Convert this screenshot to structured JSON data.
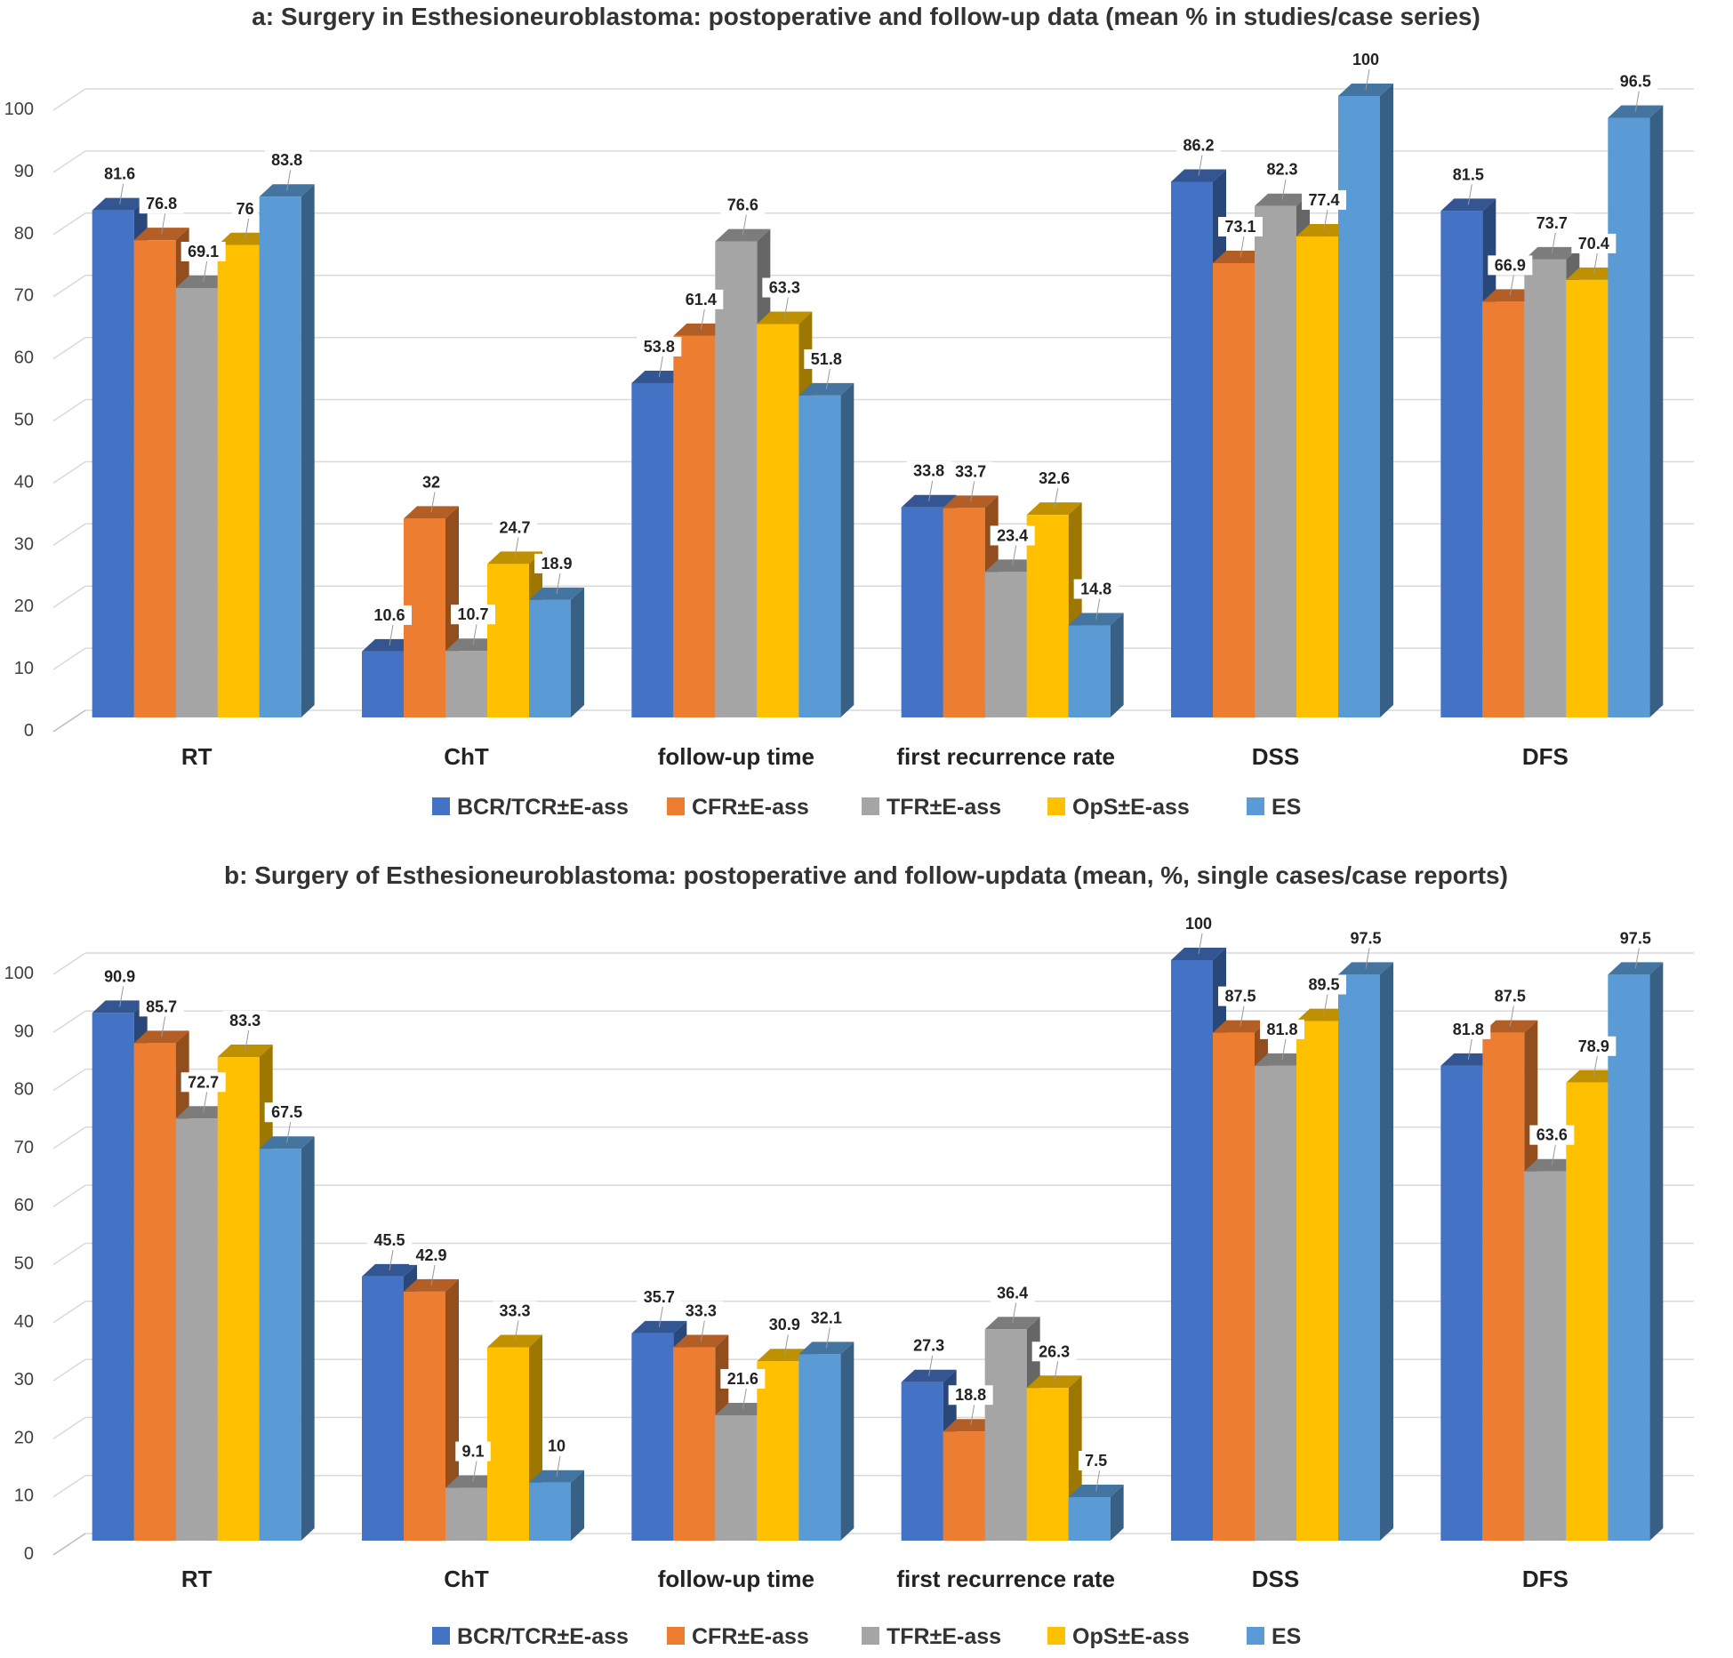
{
  "series_colors": [
    "#4472c4",
    "#ed7d31",
    "#a5a5a5",
    "#ffc000",
    "#5b9bd5"
  ],
  "chart_data": [
    {
      "type": "bar",
      "title": "a: Surgery in Esthesioneuroblastoma: postoperative and follow-up data (mean % in studies/case series)",
      "categories": [
        "RT",
        "ChT",
        "follow-up time",
        "first recurrence rate",
        "DSS",
        "DFS"
      ],
      "yticks": [
        "0",
        "10",
        "20",
        "30",
        "40",
        "50",
        "60",
        "70",
        "80",
        "90",
        "100"
      ],
      "ylim": [
        0,
        100
      ],
      "xlabel": "",
      "ylabel": "",
      "grid": true,
      "legend_position": "bottom",
      "series": [
        {
          "name": "BCR/TCR±E-ass",
          "values": [
            81.6,
            10.6,
            53.8,
            33.8,
            86.2,
            81.5
          ]
        },
        {
          "name": "CFR±E-ass",
          "values": [
            76.8,
            32,
            61.4,
            33.7,
            73.1,
            66.9
          ]
        },
        {
          "name": "TFR±E-ass",
          "values": [
            69.1,
            10.7,
            76.6,
            23.4,
            82.3,
            73.7
          ]
        },
        {
          "name": "OpS±E-ass",
          "values": [
            76,
            24.7,
            63.3,
            32.6,
            77.4,
            70.4
          ]
        },
        {
          "name": "ES",
          "values": [
            83.8,
            18.9,
            51.8,
            14.8,
            100,
            96.5
          ]
        }
      ]
    },
    {
      "type": "bar",
      "title": "b: Surgery of Esthesioneuroblastoma: postoperative and follow-updata (mean, %, single cases/case reports)",
      "categories": [
        "RT",
        "ChT",
        "follow-up time",
        "first recurrence rate",
        "DSS",
        "DFS"
      ],
      "yticks": [
        "0",
        "10",
        "20",
        "30",
        "40",
        "50",
        "60",
        "70",
        "80",
        "90",
        "100"
      ],
      "ylim": [
        0,
        100
      ],
      "xlabel": "",
      "ylabel": "",
      "grid": true,
      "legend_position": "bottom",
      "series": [
        {
          "name": "BCR/TCR±E-ass",
          "values": [
            90.9,
            45.5,
            35.7,
            27.3,
            100,
            81.8
          ]
        },
        {
          "name": "CFR±E-ass",
          "values": [
            85.7,
            42.9,
            33.3,
            18.8,
            87.5,
            87.5
          ]
        },
        {
          "name": "TFR±E-ass",
          "values": [
            72.7,
            9.1,
            21.6,
            36.4,
            81.8,
            63.6
          ]
        },
        {
          "name": "OpS±E-ass",
          "values": [
            83.3,
            33.3,
            30.9,
            26.3,
            89.5,
            78.9
          ]
        },
        {
          "name": "ES",
          "values": [
            67.5,
            10,
            32.1,
            7.5,
            97.5,
            97.5
          ]
        }
      ]
    }
  ]
}
